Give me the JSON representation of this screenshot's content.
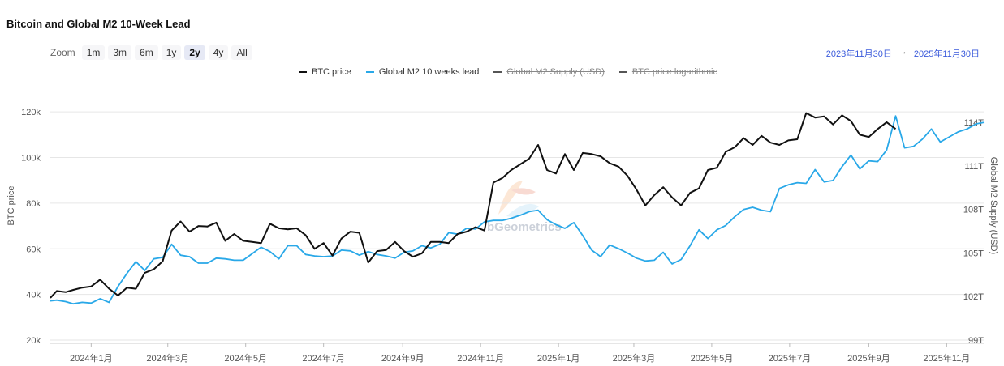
{
  "title": "Bitcoin and Global M2 10-Week Lead",
  "zoom": {
    "label": "Zoom",
    "buttons": [
      "1m",
      "3m",
      "6m",
      "1y",
      "2y",
      "4y",
      "All"
    ],
    "active": "2y"
  },
  "range": {
    "from": "2023年11月30日",
    "arrow": "→",
    "to": "2025年11月30日"
  },
  "legend": [
    {
      "name": "BTC price",
      "color": "#111111",
      "visible": true
    },
    {
      "name": "Global M2 10 weeks lead",
      "color": "#29a8e8",
      "visible": true
    },
    {
      "name": "Global M2 Supply (USD)",
      "color": "#555555",
      "visible": false
    },
    {
      "name": "BTC price logarithmic",
      "color": "#555555",
      "visible": false
    }
  ],
  "watermark": "bGeometrics",
  "colors": {
    "btc": "#111111",
    "m2": "#29a8e8",
    "grid": "#e6e6e6"
  },
  "chart_data": {
    "type": "line",
    "title": "Bitcoin and Global M2 10-Week Lead",
    "ylabel": "BTC price",
    "y2label": "Global M2 Supply (USD)",
    "ylim": [
      20000,
      130000
    ],
    "y2lim": [
      99,
      116.3
    ],
    "yticks": [
      20000,
      40000,
      60000,
      80000,
      100000,
      120000
    ],
    "ytick_labels": [
      "20k",
      "40k",
      "60k",
      "80k",
      "100k",
      "120k"
    ],
    "y2ticks": [
      99,
      102,
      105,
      108,
      111,
      114
    ],
    "y2tick_labels": [
      "99T",
      "102T",
      "105T",
      "108T",
      "111T",
      "114T"
    ],
    "xlim": [
      "2023-11-30",
      "2025-11-30"
    ],
    "xticks": [
      "2024-01-01",
      "2024-03-01",
      "2024-05-01",
      "2024-07-01",
      "2024-09-01",
      "2024-11-01",
      "2025-01-01",
      "2025-03-01",
      "2025-05-01",
      "2025-07-01",
      "2025-09-01",
      "2025-11-01"
    ],
    "xtick_labels": [
      "2024年1月",
      "2024年3月",
      "2024年5月",
      "2024年7月",
      "2024年9月",
      "2024年11月",
      "2025年1月",
      "2025年3月",
      "2025年5月",
      "2025年7月",
      "2025年9月",
      "2025年11月"
    ],
    "grid": true,
    "legend_position": "top",
    "series": [
      {
        "name": "BTC price",
        "axis": "left",
        "x": [
          "2023-11-30",
          "2023-12-05",
          "2023-12-12",
          "2023-12-18",
          "2023-12-25",
          "2024-01-01",
          "2024-01-08",
          "2024-01-15",
          "2024-01-22",
          "2024-01-29",
          "2024-02-05",
          "2024-02-12",
          "2024-02-19",
          "2024-02-26",
          "2024-03-04",
          "2024-03-11",
          "2024-03-18",
          "2024-03-25",
          "2024-04-01",
          "2024-04-08",
          "2024-04-15",
          "2024-04-22",
          "2024-04-29",
          "2024-05-06",
          "2024-05-13",
          "2024-05-20",
          "2024-05-27",
          "2024-06-03",
          "2024-06-10",
          "2024-06-17",
          "2024-06-24",
          "2024-07-01",
          "2024-07-08",
          "2024-07-15",
          "2024-07-22",
          "2024-07-29",
          "2024-08-05",
          "2024-08-12",
          "2024-08-19",
          "2024-08-26",
          "2024-09-02",
          "2024-09-09",
          "2024-09-16",
          "2024-09-23",
          "2024-09-30",
          "2024-10-07",
          "2024-10-14",
          "2024-10-21",
          "2024-10-28",
          "2024-11-04",
          "2024-11-11",
          "2024-11-18",
          "2024-11-25",
          "2024-12-02",
          "2024-12-09",
          "2024-12-16",
          "2024-12-23",
          "2024-12-30",
          "2025-01-06",
          "2025-01-13",
          "2025-01-20",
          "2025-01-27",
          "2025-02-03",
          "2025-02-10",
          "2025-02-17",
          "2025-02-24",
          "2025-03-03",
          "2025-03-10",
          "2025-03-17",
          "2025-03-24",
          "2025-03-31",
          "2025-04-07",
          "2025-04-14",
          "2025-04-21",
          "2025-04-28",
          "2025-05-05",
          "2025-05-12",
          "2025-05-19",
          "2025-05-26",
          "2025-06-02",
          "2025-06-09",
          "2025-06-16",
          "2025-06-23",
          "2025-06-30",
          "2025-07-07",
          "2025-07-14",
          "2025-07-21",
          "2025-07-28",
          "2025-08-04",
          "2025-08-11",
          "2025-08-18",
          "2025-08-25",
          "2025-09-01",
          "2025-09-08",
          "2025-09-15",
          "2025-09-22"
        ],
        "values": [
          38500,
          41500,
          41000,
          42000,
          43000,
          43500,
          46500,
          42500,
          39500,
          43000,
          42500,
          49500,
          51000,
          54500,
          68000,
          72000,
          67500,
          70000,
          69800,
          71500,
          63500,
          66500,
          63500,
          63000,
          62500,
          71000,
          69000,
          68500,
          69000,
          66000,
          60000,
          62500,
          57000,
          64500,
          67500,
          67000,
          54000,
          59000,
          59500,
          63000,
          59000,
          56500,
          58000,
          63000,
          63000,
          62500,
          66500,
          67500,
          69500,
          68000,
          89000,
          91000,
          94500,
          97000,
          99500,
          105500,
          94500,
          93000,
          101500,
          94500,
          102000,
          101500,
          100500,
          97500,
          96000,
          92000,
          86000,
          79000,
          83500,
          87000,
          82500,
          79000,
          84500,
          86500,
          94500,
          95500,
          102500,
          104500,
          108500,
          105500,
          109500,
          106500,
          105500,
          107500,
          108000,
          119500,
          117500,
          118000,
          114500,
          118500,
          116000,
          110000,
          109000,
          112500,
          115500,
          112500
        ]
      },
      {
        "name": "Global M2 10 weeks lead",
        "axis": "right",
        "x": [
          "2023-11-30",
          "2023-12-05",
          "2023-12-12",
          "2023-12-18",
          "2023-12-25",
          "2024-01-01",
          "2024-01-08",
          "2024-01-15",
          "2024-01-22",
          "2024-01-29",
          "2024-02-05",
          "2024-02-12",
          "2024-02-19",
          "2024-02-26",
          "2024-03-04",
          "2024-03-11",
          "2024-03-18",
          "2024-03-25",
          "2024-04-01",
          "2024-04-08",
          "2024-04-15",
          "2024-04-22",
          "2024-04-29",
          "2024-05-06",
          "2024-05-13",
          "2024-05-20",
          "2024-05-27",
          "2024-06-03",
          "2024-06-10",
          "2024-06-17",
          "2024-06-24",
          "2024-07-01",
          "2024-07-08",
          "2024-07-15",
          "2024-07-22",
          "2024-07-29",
          "2024-08-05",
          "2024-08-12",
          "2024-08-19",
          "2024-08-26",
          "2024-09-02",
          "2024-09-09",
          "2024-09-16",
          "2024-09-23",
          "2024-09-30",
          "2024-10-07",
          "2024-10-14",
          "2024-10-21",
          "2024-10-28",
          "2024-11-04",
          "2024-11-11",
          "2024-11-18",
          "2024-11-25",
          "2024-12-02",
          "2024-12-09",
          "2024-12-16",
          "2024-12-23",
          "2024-12-30",
          "2025-01-06",
          "2025-01-13",
          "2025-01-20",
          "2025-01-27",
          "2025-02-03",
          "2025-02-10",
          "2025-02-17",
          "2025-02-24",
          "2025-03-03",
          "2025-03-10",
          "2025-03-17",
          "2025-03-24",
          "2025-03-31",
          "2025-04-07",
          "2025-04-14",
          "2025-04-21",
          "2025-04-28",
          "2025-05-05",
          "2025-05-12",
          "2025-05-19",
          "2025-05-26",
          "2025-06-02",
          "2025-06-09",
          "2025-06-16",
          "2025-06-23",
          "2025-06-30",
          "2025-07-07",
          "2025-07-14",
          "2025-07-21",
          "2025-07-28",
          "2025-08-04",
          "2025-08-11",
          "2025-08-18",
          "2025-08-25",
          "2025-09-01",
          "2025-09-08",
          "2025-09-15",
          "2025-09-22",
          "2025-09-29",
          "2025-10-06",
          "2025-10-13",
          "2025-10-20",
          "2025-10-27",
          "2025-11-03",
          "2025-11-10",
          "2025-11-17",
          "2025-11-24",
          "2025-11-30"
        ],
        "values": [
          101.7,
          101.75,
          101.65,
          101.5,
          101.6,
          101.55,
          101.85,
          101.6,
          102.7,
          103.6,
          104.4,
          103.8,
          104.6,
          104.7,
          105.6,
          104.85,
          104.75,
          104.3,
          104.3,
          104.65,
          104.6,
          104.5,
          104.5,
          104.95,
          105.4,
          105.1,
          104.6,
          105.5,
          105.5,
          104.9,
          104.8,
          104.75,
          104.8,
          105.2,
          105.15,
          104.85,
          105.1,
          104.9,
          104.8,
          104.65,
          105.05,
          105.15,
          105.5,
          105.35,
          105.6,
          106.4,
          106.3,
          106.7,
          106.65,
          107.15,
          107.25,
          107.25,
          107.4,
          107.6,
          107.85,
          107.95,
          107.3,
          106.95,
          106.7,
          107.1,
          106.2,
          105.2,
          104.75,
          105.55,
          105.3,
          105.0,
          104.65,
          104.45,
          104.5,
          105.05,
          104.25,
          104.55,
          105.5,
          106.6,
          106.0,
          106.6,
          106.9,
          107.5,
          108.0,
          108.15,
          107.95,
          107.85,
          109.45,
          109.7,
          109.85,
          109.8,
          110.75,
          109.9,
          110.0,
          110.95,
          111.75,
          110.8,
          111.35,
          111.3,
          112.1,
          114.45,
          112.25,
          112.35,
          112.85,
          113.55,
          112.65,
          113.0,
          113.35,
          113.55,
          113.9,
          114.0
        ]
      }
    ]
  }
}
